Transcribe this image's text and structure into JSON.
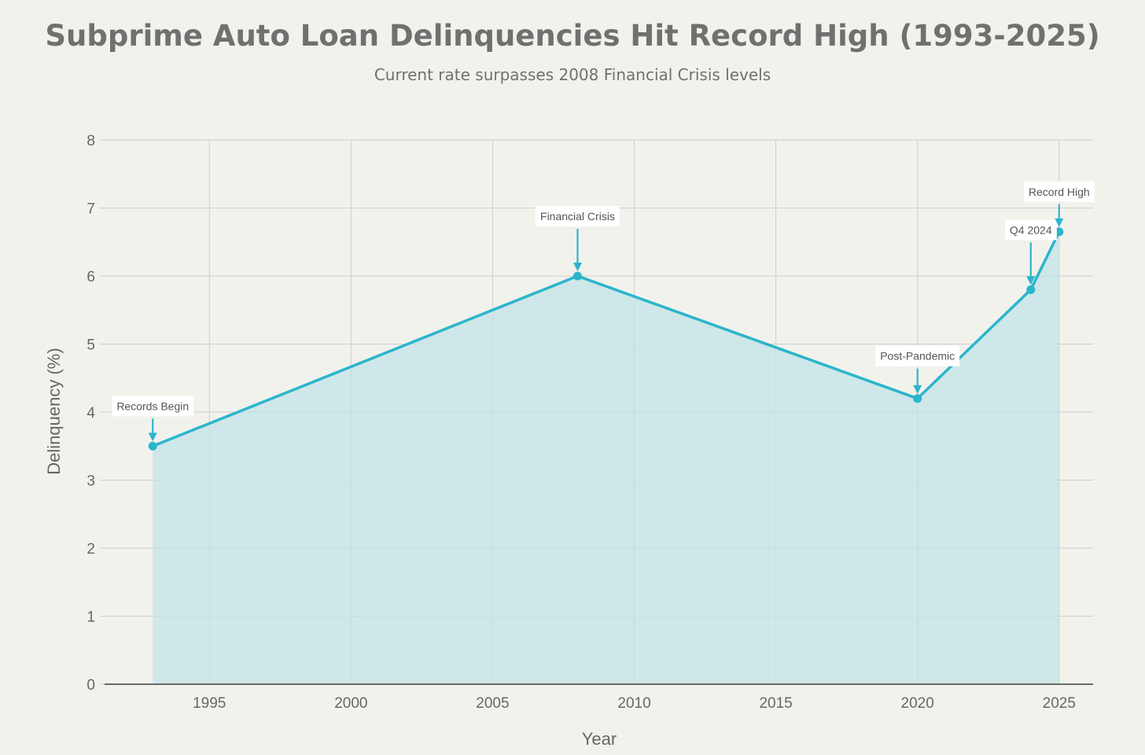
{
  "chart_data": {
    "type": "area",
    "title": "Subprime Auto Loan Delinquencies Hit Record High (1993-2025)",
    "subtitle": "Current rate surpasses 2008 Financial Crisis levels",
    "xlabel": "Year",
    "ylabel": "Delinquency (%)",
    "xlim": [
      1991.3,
      2026.2
    ],
    "ylim": [
      0,
      8
    ],
    "x_ticks": [
      1995,
      2000,
      2005,
      2010,
      2015,
      2020,
      2025
    ],
    "y_ticks": [
      0,
      1,
      2,
      3,
      4,
      5,
      6,
      7,
      8
    ],
    "grid": true,
    "series": [
      {
        "x": [
          1993,
          2008,
          2020,
          2024,
          2025
        ],
        "values": [
          3.5,
          6.0,
          4.2,
          5.8,
          6.65
        ]
      }
    ],
    "annotations": [
      {
        "x": 1993,
        "y": 3.5,
        "text": "Records Begin",
        "arrow_len": 35
      },
      {
        "x": 2008,
        "y": 6.0,
        "text": "Financial Crisis",
        "arrow_len": 60
      },
      {
        "x": 2020,
        "y": 4.2,
        "text": "Post-Pandemic",
        "arrow_len": 38
      },
      {
        "x": 2024,
        "y": 5.8,
        "text": "Q4 2024",
        "arrow_len": 60
      },
      {
        "x": 2025,
        "y": 6.65,
        "text": "Record High",
        "arrow_len": 35
      }
    ],
    "colors": {
      "line": "#2bb5cc",
      "fill": "#c2e3e6",
      "grid": "#cfcfc9",
      "background": "#f2f2ed"
    }
  }
}
